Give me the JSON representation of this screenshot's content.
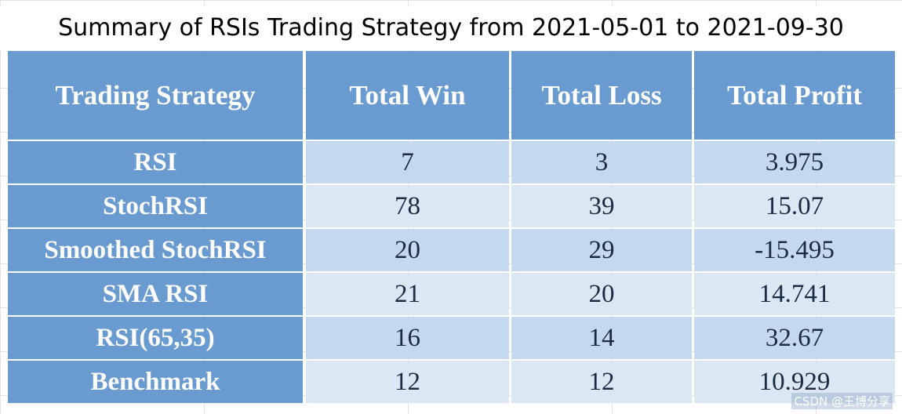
{
  "title": "Summary of RSIs Trading Strategy from 2021-05-01 to 2021-09-30",
  "table": {
    "header": [
      "Trading Strategy",
      "Total Win",
      "Total Loss",
      "Total Profit"
    ],
    "rows": [
      [
        "RSI",
        7,
        3,
        3.975
      ],
      [
        "StochRSI",
        78,
        39,
        15.07
      ],
      [
        "Smoothed StochRSI",
        20,
        29,
        -15.495
      ],
      [
        "SMA RSI",
        21,
        20,
        14.741
      ],
      [
        "RSI(65,35)",
        16,
        14,
        32.67
      ],
      [
        "Benchmark",
        12,
        12,
        10.929
      ]
    ]
  },
  "watermark": "CSDN @王博分享"
}
